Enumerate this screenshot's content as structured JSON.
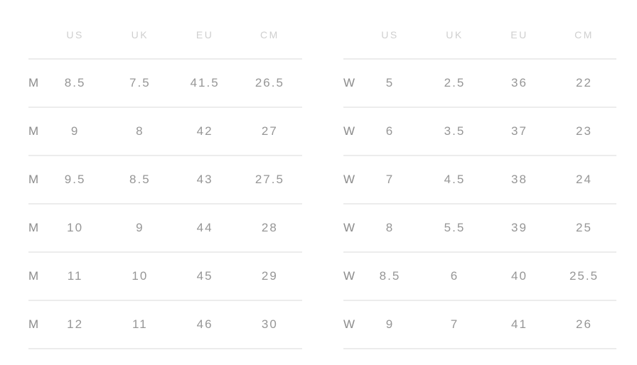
{
  "colors": {
    "background": "#ffffff",
    "header_text": "#cfcfcf",
    "cell_text": "#969696",
    "gender_label_text": "#8c8c8c",
    "divider_line": "#ececec"
  },
  "tables": [
    {
      "name": "mens-sizes",
      "header": {
        "label": "",
        "us": "US",
        "uk": "UK",
        "eu": "EU",
        "cm": "CM"
      },
      "rows": [
        {
          "label": "M",
          "us": "8.5",
          "uk": "7.5",
          "eu": "41.5",
          "cm": "26.5"
        },
        {
          "label": "M",
          "us": "9",
          "uk": "8",
          "eu": "42",
          "cm": "27"
        },
        {
          "label": "M",
          "us": "9.5",
          "uk": "8.5",
          "eu": "43",
          "cm": "27.5"
        },
        {
          "label": "M",
          "us": "10",
          "uk": "9",
          "eu": "44",
          "cm": "28"
        },
        {
          "label": "M",
          "us": "11",
          "uk": "10",
          "eu": "45",
          "cm": "29"
        },
        {
          "label": "M",
          "us": "12",
          "uk": "11",
          "eu": "46",
          "cm": "30"
        }
      ]
    },
    {
      "name": "womens-sizes",
      "header": {
        "label": "",
        "us": "US",
        "uk": "UK",
        "eu": "EU",
        "cm": "CM"
      },
      "rows": [
        {
          "label": "W",
          "us": "5",
          "uk": "2.5",
          "eu": "36",
          "cm": "22"
        },
        {
          "label": "W",
          "us": "6",
          "uk": "3.5",
          "eu": "37",
          "cm": "23"
        },
        {
          "label": "W",
          "us": "7",
          "uk": "4.5",
          "eu": "38",
          "cm": "24"
        },
        {
          "label": "W",
          "us": "8",
          "uk": "5.5",
          "eu": "39",
          "cm": "25"
        },
        {
          "label": "W",
          "us": "8.5",
          "uk": "6",
          "eu": "40",
          "cm": "25.5"
        },
        {
          "label": "W",
          "us": "9",
          "uk": "7",
          "eu": "41",
          "cm": "26"
        }
      ]
    }
  ]
}
